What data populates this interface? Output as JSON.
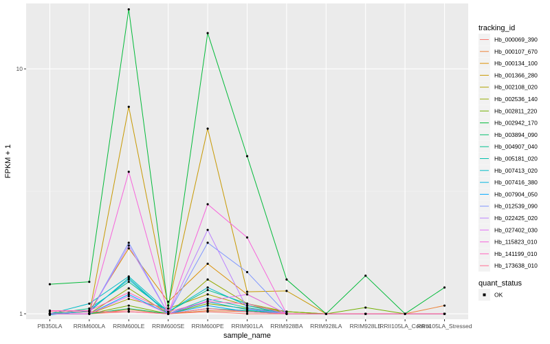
{
  "chart_data": {
    "type": "line",
    "xlabel": "sample_name",
    "ylabel": "FPKM + 1",
    "y_scale": "log10",
    "ylim": [
      0.95,
      18.5
    ],
    "yticks": [
      {
        "value": 1,
        "label": "1"
      },
      {
        "value": 10,
        "label": "10"
      }
    ],
    "categories": [
      "PB350LA",
      "RRIM600LA",
      "RRIM600LE",
      "RRIM600SE",
      "RRIM600PE",
      "RRIM901LA",
      "RRIM928BA",
      "RRIM928LA",
      "RRIM928LE",
      "RRII105LA_Control",
      "RRII105LA_Stressed"
    ],
    "grid": true,
    "legend_position": "right",
    "legend_title": "tracking_id",
    "legend2": {
      "title": "quant_status",
      "items": [
        {
          "label": "OK"
        }
      ]
    },
    "series": [
      {
        "name": "Hb_000069_390",
        "color": "#F8766D",
        "values": [
          1.0,
          1.0,
          1.02,
          1.0,
          1.02,
          1.0,
          1.0,
          1.0,
          1.0,
          1.0,
          1.0
        ]
      },
      {
        "name": "Hb_000107_670",
        "color": "#EC8239",
        "values": [
          1.0,
          1.0,
          1.04,
          1.0,
          1.03,
          1.02,
          1.0,
          1.0,
          1.0,
          1.0,
          1.08
        ]
      },
      {
        "name": "Hb_000134_100",
        "color": "#DB8E00",
        "values": [
          1.0,
          1.02,
          1.85,
          1.12,
          1.6,
          1.2,
          1.0,
          1.0,
          1.0,
          1.0,
          1.0
        ]
      },
      {
        "name": "Hb_001366_280",
        "color": "#C79800",
        "values": [
          1.0,
          1.0,
          7.0,
          1.08,
          5.7,
          1.23,
          1.24,
          1.0,
          1.0,
          1.0,
          1.0
        ]
      },
      {
        "name": "Hb_002108_020",
        "color": "#AFA100",
        "values": [
          1.0,
          1.0,
          1.15,
          1.05,
          1.2,
          1.08,
          1.02,
          1.0,
          1.0,
          1.0,
          1.0
        ]
      },
      {
        "name": "Hb_002536_140",
        "color": "#94AA00",
        "values": [
          1.0,
          1.0,
          1.27,
          1.0,
          1.38,
          1.1,
          1.02,
          1.0,
          1.0,
          1.0,
          1.0
        ]
      },
      {
        "name": "Hb_002811_220",
        "color": "#72B000",
        "values": [
          1.0,
          1.0,
          1.08,
          1.0,
          1.1,
          1.05,
          1.02,
          1.0,
          1.06,
          1.0,
          1.0
        ]
      },
      {
        "name": "Hb_002942_170",
        "color": "#00BA38",
        "values": [
          1.32,
          1.35,
          17.5,
          1.05,
          14.0,
          4.4,
          1.38,
          1.0,
          1.43,
          1.0,
          1.28
        ]
      },
      {
        "name": "Hb_003894_090",
        "color": "#00BE6C",
        "values": [
          1.0,
          1.0,
          1.05,
          1.0,
          1.05,
          1.03,
          1.0,
          1.0,
          1.0,
          1.0,
          1.0
        ]
      },
      {
        "name": "Hb_004907_040",
        "color": "#00C08E",
        "values": [
          1.0,
          1.05,
          1.35,
          1.02,
          1.25,
          1.1,
          1.0,
          1.0,
          1.0,
          1.0,
          1.0
        ]
      },
      {
        "name": "Hb_005181_020",
        "color": "#00BFAC",
        "values": [
          1.0,
          1.02,
          1.4,
          1.0,
          1.15,
          1.06,
          1.0,
          1.0,
          1.0,
          1.0,
          1.0
        ]
      },
      {
        "name": "Hb_007413_020",
        "color": "#00BBC8",
        "values": [
          1.0,
          1.1,
          1.42,
          1.02,
          1.28,
          1.08,
          1.0,
          1.0,
          1.0,
          1.0,
          1.0
        ]
      },
      {
        "name": "Hb_007416_380",
        "color": "#00B4E0",
        "values": [
          0.99,
          1.03,
          1.38,
          1.0,
          1.12,
          1.04,
          1.0,
          1.0,
          1.0,
          1.0,
          1.0
        ]
      },
      {
        "name": "Hb_007904_050",
        "color": "#00A8FF",
        "values": [
          1.0,
          1.0,
          1.2,
          1.0,
          1.08,
          1.02,
          1.0,
          1.0,
          1.0,
          1.0,
          1.0
        ]
      },
      {
        "name": "Hb_012539_090",
        "color": "#7F96FF",
        "values": [
          1.0,
          1.0,
          1.95,
          1.0,
          1.95,
          1.48,
          1.0,
          1.0,
          1.0,
          1.0,
          1.0
        ]
      },
      {
        "name": "Hb_022425_020",
        "color": "#BB81FF",
        "values": [
          1.0,
          1.0,
          1.9,
          1.0,
          2.2,
          1.05,
          1.0,
          1.0,
          1.0,
          1.0,
          1.0
        ]
      },
      {
        "name": "Hb_027402_030",
        "color": "#E26EF7",
        "values": [
          1.0,
          1.0,
          1.18,
          1.0,
          1.13,
          1.2,
          1.0,
          1.0,
          1.0,
          1.0,
          1.0
        ]
      },
      {
        "name": "Hb_115823_010",
        "color": "#F763DB",
        "values": [
          1.0,
          1.0,
          3.8,
          1.0,
          2.8,
          2.05,
          1.0,
          1.0,
          1.0,
          1.0,
          1.0
        ]
      },
      {
        "name": "Hb_141199_010",
        "color": "#FF62BC",
        "values": [
          1.03,
          1.03,
          1.22,
          1.02,
          1.12,
          1.1,
          1.0,
          1.0,
          1.0,
          1.0,
          1.0
        ]
      },
      {
        "name": "Hb_173638_010",
        "color": "#FF6C91",
        "values": [
          1.02,
          1.02,
          1.02,
          1.0,
          1.05,
          1.02,
          1.0,
          1.0,
          1.0,
          1.0,
          1.0
        ]
      }
    ]
  }
}
